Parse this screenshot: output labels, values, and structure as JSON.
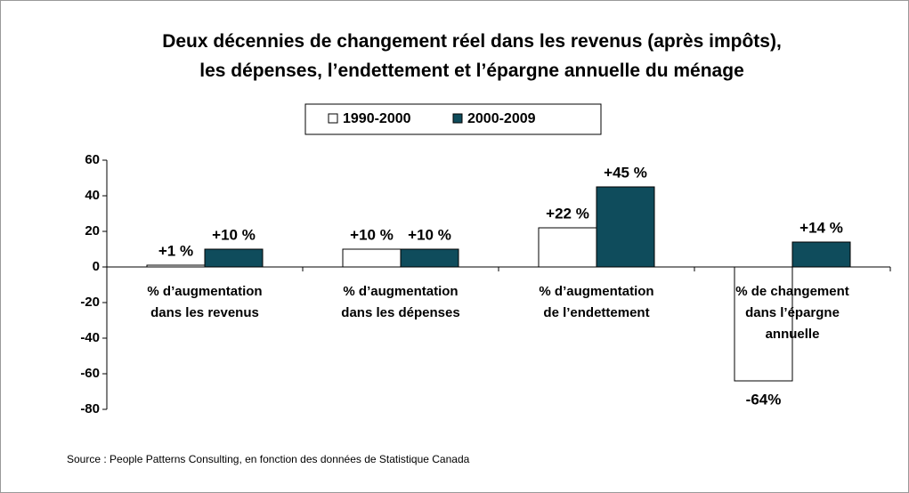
{
  "chart_data": {
    "type": "bar",
    "title": "Deux décennies de changement réel dans les revenus (après impôts),\nles dépenses, l’endettement et l’épargne annuelle du ménage",
    "categories": [
      "% d’augmentation\ndans les revenus",
      "% d’augmentation\ndans les dépenses",
      "% d’augmentation\nde l’endettement",
      "% de changement\ndans l’épargne\nannuelle"
    ],
    "series": [
      {
        "name": "1990-2000",
        "color": "#ffffff",
        "values": [
          1,
          10,
          22,
          -64
        ],
        "value_labels": [
          "+1 %",
          "+10 %",
          "+22 %",
          "-64%"
        ]
      },
      {
        "name": "2000-2009",
        "color": "#0f4c5c",
        "values": [
          10,
          10,
          45,
          14
        ],
        "value_labels": [
          "+10 %",
          "+10 %",
          "+45 %",
          "+14 %"
        ]
      }
    ],
    "ylim": [
      -80,
      60
    ],
    "yticks": [
      -80,
      -60,
      -40,
      -20,
      0,
      20,
      40,
      60
    ],
    "source": "Source : People Patterns Consulting, en fonction des données de Statistique Canada"
  }
}
